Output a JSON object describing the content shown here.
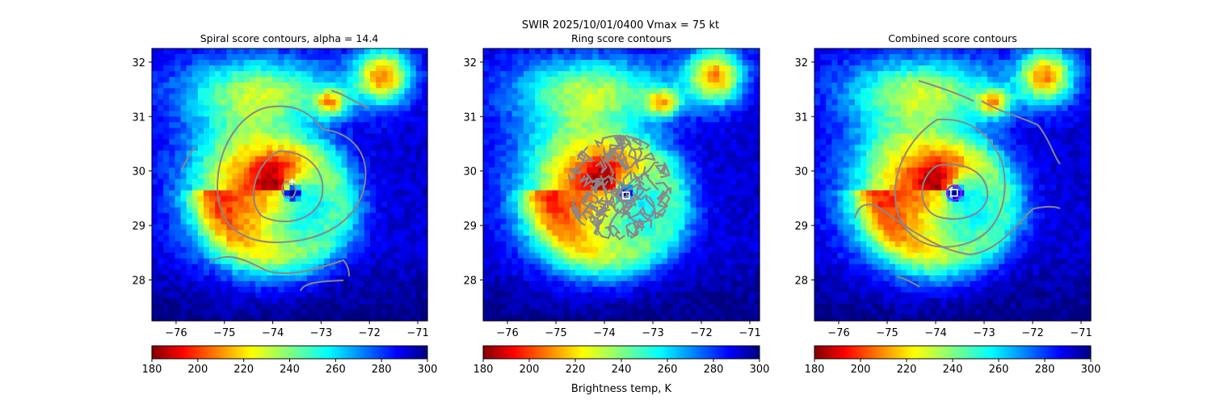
{
  "suptitle_line1": "SWIR  2025/10/01/0400    Vmax = 75 kt",
  "colorbar_label": "Brightness temp, K",
  "chart_data": [
    {
      "type": "heatmap",
      "title": "Spiral score contours, alpha = 14.4",
      "xlim": [
        -76.5,
        -70.8
      ],
      "ylim": [
        27.25,
        32.25
      ],
      "xticks": [
        -76,
        -75,
        -74,
        -73,
        -72,
        -71
      ],
      "yticks": [
        28,
        29,
        30,
        31,
        32
      ],
      "center_marker": {
        "x": -73.6,
        "y": 29.8,
        "shape": "plus"
      },
      "colorbar": {
        "min": 180,
        "max": 300,
        "ticks": [
          180,
          200,
          220,
          240,
          260,
          280,
          300
        ],
        "cmap": "jet_r"
      }
    },
    {
      "type": "heatmap",
      "title": "Ring score contours",
      "xlim": [
        -76.5,
        -70.8
      ],
      "ylim": [
        27.25,
        32.25
      ],
      "xticks": [
        -76,
        -75,
        -74,
        -73,
        -72,
        -71
      ],
      "yticks": [
        28,
        29,
        30,
        31,
        32
      ],
      "center_marker": {
        "x": -73.55,
        "y": 29.55,
        "shape": "square"
      },
      "colorbar": {
        "min": 180,
        "max": 300,
        "ticks": [
          180,
          200,
          220,
          240,
          260,
          280,
          300
        ],
        "cmap": "jet_r"
      }
    },
    {
      "type": "heatmap",
      "title": "Combined score contours",
      "xlim": [
        -76.5,
        -70.8
      ],
      "ylim": [
        27.25,
        32.25
      ],
      "xticks": [
        -76,
        -75,
        -74,
        -73,
        -72,
        -71
      ],
      "yticks": [
        28,
        29,
        30,
        31,
        32
      ],
      "center_marker": {
        "x": -73.62,
        "y": 29.6,
        "shape": "square"
      },
      "colorbar": {
        "min": 180,
        "max": 300,
        "ticks": [
          180,
          200,
          220,
          240,
          260,
          280,
          300
        ],
        "cmap": "jet_r"
      }
    }
  ]
}
